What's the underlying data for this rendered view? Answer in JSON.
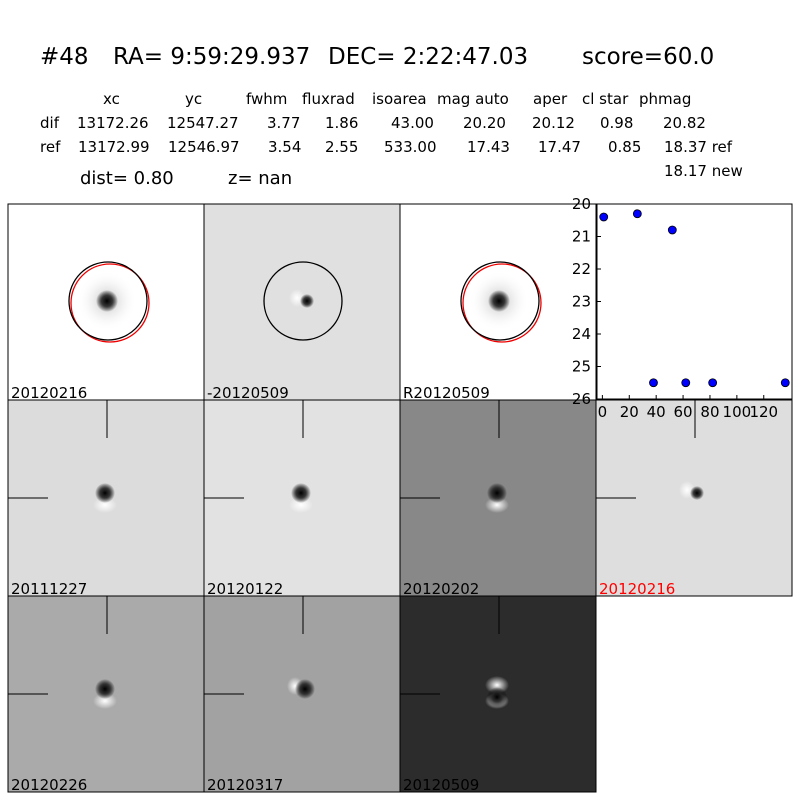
{
  "header": {
    "id": "#48",
    "ra": "RA= 9:59:29.937",
    "dec": "DEC= 2:22:47.03",
    "score": "score=60.0"
  },
  "table": {
    "columns": [
      "xc",
      "yc",
      "fwhm",
      "fluxrad",
      "isoarea",
      "mag auto",
      "aper",
      "cl star",
      "phmag"
    ],
    "rows": [
      {
        "label": "dif",
        "cells": [
          "13172.26",
          "12547.27",
          "3.77",
          "1.86",
          "43.00",
          "20.20",
          "20.12",
          "0.98",
          "20.82"
        ]
      },
      {
        "label": "ref",
        "cells": [
          "13172.99",
          "12546.97",
          "3.54",
          "2.55",
          "533.00",
          "17.43",
          "17.47",
          "0.85",
          "18.37 ref"
        ]
      }
    ],
    "note": "18.17 new"
  },
  "stats": {
    "dist": "dist=  0.80",
    "z": "z=   nan"
  },
  "panels": [
    "20120216",
    "-20120509",
    "R20120509",
    "20111227",
    "20120122",
    "20120202",
    "20120216",
    "20120226",
    "20120317",
    "20120509"
  ],
  "chart_data": {
    "type": "scatter",
    "x": [
      1,
      26,
      38,
      52,
      62,
      82,
      136
    ],
    "values": [
      20.4,
      20.3,
      25.5,
      20.8,
      25.5,
      25.5,
      25.5
    ],
    "color": "#0000ff",
    "xlim": [
      -4,
      141
    ],
    "ylim": [
      26,
      20
    ],
    "xticks": [
      0,
      20,
      40,
      60,
      80,
      100,
      120
    ],
    "yticks": [
      20,
      21,
      22,
      23,
      24,
      25,
      26
    ]
  }
}
